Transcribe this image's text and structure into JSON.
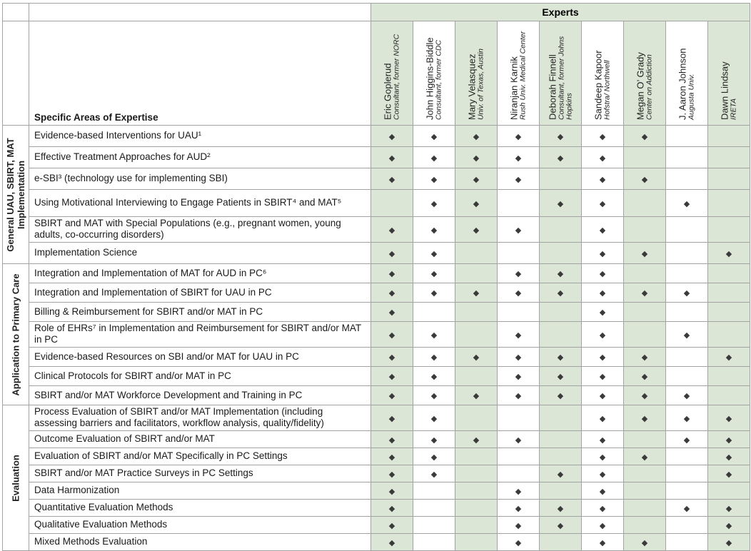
{
  "header": {
    "experts_label": "Experts",
    "areas_label": "Specific Areas of Expertise"
  },
  "colors": {
    "band_green": "#dce6d6",
    "grid_border": "#a3a3a3",
    "diamond": "#3a3a3a"
  },
  "diamond_glyph": "◆",
  "experts": [
    {
      "name": "Eric Goplerud",
      "affiliation": "Consultant, former NORC"
    },
    {
      "name": "John Higgins-Biddle",
      "affiliation": "Consultant, former CDC"
    },
    {
      "name": "Mary Velasquez",
      "affiliation": "Univ. of Texas, Austin"
    },
    {
      "name": "Niranjan Karnik",
      "affiliation": "Rush Univ. Medical Center"
    },
    {
      "name": "Deborah Finnell",
      "affiliation": "Consultant, former Johns Hopkins"
    },
    {
      "name": "Sandeep Kapoor",
      "affiliation": "Hofstra/ Northwell"
    },
    {
      "name": "Megan O’ Grady",
      "affiliation": "Center on Addiction"
    },
    {
      "name": "J. Aaron Johnson",
      "affiliation": "Augusta Univ."
    },
    {
      "name": "Dawn Lindsay",
      "affiliation": "IRETA"
    }
  ],
  "sections": [
    {
      "label": "General UAU, SBIRT, MAT Implementation"
    },
    {
      "label": "Application to Primary Care"
    },
    {
      "label": "Evaluation"
    }
  ],
  "rows": [
    {
      "section": 0,
      "label": "Evidence-based Interventions for UAU¹",
      "marks": [
        1,
        1,
        1,
        1,
        1,
        1,
        1,
        0,
        0
      ]
    },
    {
      "section": 0,
      "label": "Effective Treatment Approaches for AUD²",
      "marks": [
        1,
        1,
        1,
        1,
        1,
        1,
        0,
        0,
        0
      ]
    },
    {
      "section": 0,
      "label": "e-SBI³ (technology use for implementing SBI)",
      "marks": [
        1,
        1,
        1,
        1,
        0,
        1,
        1,
        0,
        0
      ]
    },
    {
      "section": 0,
      "label": "Using Motivational Interviewing to Engage Patients in SBIRT⁴ and MAT⁵",
      "marks": [
        0,
        1,
        1,
        0,
        1,
        1,
        0,
        1,
        0
      ]
    },
    {
      "section": 0,
      "label": "SBIRT and MAT with Special Populations (e.g., pregnant women, young adults, co-occurring disorders)",
      "marks": [
        1,
        1,
        1,
        1,
        0,
        1,
        0,
        0,
        0
      ]
    },
    {
      "section": 0,
      "label": "Implementation Science",
      "marks": [
        1,
        1,
        0,
        0,
        0,
        1,
        1,
        0,
        1
      ]
    },
    {
      "section": 1,
      "label": "Integration and Implementation of MAT for AUD in PC⁶",
      "marks": [
        1,
        1,
        0,
        1,
        1,
        1,
        0,
        0,
        0
      ]
    },
    {
      "section": 1,
      "label": "Integration and Implementation of SBIRT for UAU in PC",
      "marks": [
        1,
        1,
        1,
        1,
        1,
        1,
        1,
        1,
        0
      ]
    },
    {
      "section": 1,
      "label": "Billing & Reimbursement for SBIRT and/or MAT in PC",
      "marks": [
        1,
        0,
        0,
        0,
        0,
        1,
        0,
        0,
        0
      ]
    },
    {
      "section": 1,
      "label": "Role of EHRs⁷ in Implementation and Reimbursement for SBIRT and/or MAT in PC",
      "marks": [
        1,
        1,
        0,
        1,
        0,
        1,
        0,
        1,
        0
      ]
    },
    {
      "section": 1,
      "label": "Evidence-based Resources on SBI and/or MAT for UAU in PC",
      "marks": [
        1,
        1,
        1,
        1,
        1,
        1,
        1,
        0,
        1
      ]
    },
    {
      "section": 1,
      "label": "Clinical Protocols for SBIRT and/or MAT in PC",
      "marks": [
        1,
        1,
        0,
        1,
        1,
        1,
        1,
        0,
        0
      ]
    },
    {
      "section": 1,
      "label": "SBIRT and/or MAT Workforce Development and Training in PC",
      "marks": [
        1,
        1,
        1,
        1,
        1,
        1,
        1,
        1,
        0
      ]
    },
    {
      "section": 2,
      "label": "Process Evaluation of SBIRT and/or MAT Implementation (including assessing barriers and facilitators, workflow analysis, quality/fidelity)",
      "marks": [
        1,
        1,
        0,
        0,
        0,
        1,
        1,
        1,
        1
      ]
    },
    {
      "section": 2,
      "label": "Outcome Evaluation of SBIRT and/or MAT",
      "marks": [
        1,
        1,
        1,
        1,
        0,
        1,
        0,
        1,
        1
      ]
    },
    {
      "section": 2,
      "label": "Evaluation of SBIRT and/or MAT Specifically in PC Settings",
      "marks": [
        1,
        1,
        0,
        0,
        0,
        1,
        1,
        0,
        1
      ]
    },
    {
      "section": 2,
      "label": "SBIRT and/or MAT Practice Surveys in PC Settings",
      "marks": [
        1,
        1,
        0,
        0,
        1,
        1,
        0,
        0,
        1
      ]
    },
    {
      "section": 2,
      "label": "Data Harmonization",
      "marks": [
        1,
        0,
        0,
        1,
        0,
        1,
        0,
        0,
        0
      ]
    },
    {
      "section": 2,
      "label": "Quantitative Evaluation Methods",
      "marks": [
        1,
        0,
        0,
        1,
        1,
        1,
        0,
        1,
        1
      ]
    },
    {
      "section": 2,
      "label": "Qualitative Evaluation Methods",
      "marks": [
        1,
        0,
        0,
        1,
        1,
        1,
        0,
        0,
        1
      ]
    },
    {
      "section": 2,
      "label": "Mixed Methods Evaluation",
      "marks": [
        1,
        0,
        0,
        1,
        0,
        1,
        1,
        0,
        1
      ]
    }
  ]
}
